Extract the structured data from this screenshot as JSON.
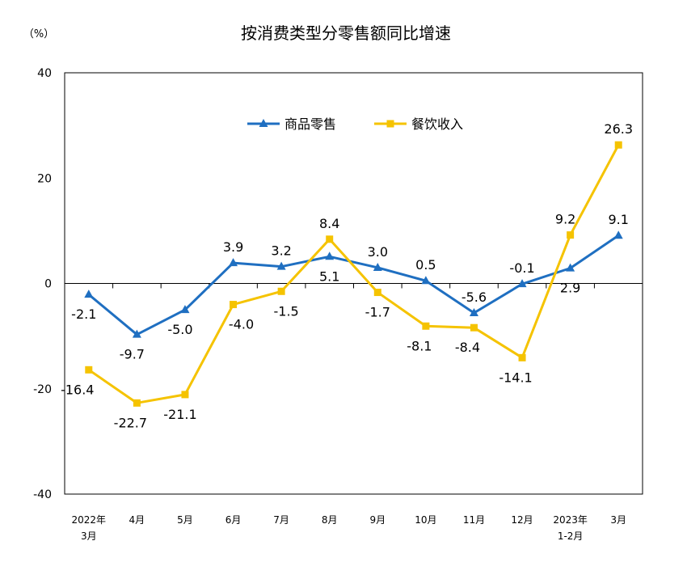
{
  "chart_data": {
    "type": "line",
    "title": "按消费类型分零售额同比增速",
    "y_unit_label": "（%）",
    "ylim": [
      -40,
      40
    ],
    "y_ticks": [
      "40",
      "20",
      "0",
      "-20",
      "-40"
    ],
    "y_tick_values": [
      40,
      20,
      0,
      -20,
      -40
    ],
    "categories": [
      [
        "2022年",
        "3月"
      ],
      [
        "4月"
      ],
      [
        "5月"
      ],
      [
        "6月"
      ],
      [
        "7月"
      ],
      [
        "8月"
      ],
      [
        "9月"
      ],
      [
        "10月"
      ],
      [
        "11月"
      ],
      [
        "12月"
      ],
      [
        "2023年",
        "1-2月"
      ],
      [
        "3月"
      ]
    ],
    "series": [
      {
        "name": "商品零售",
        "color": "#1f6fc1",
        "marker": "triangle",
        "values": [
          -2.1,
          -9.7,
          -5.0,
          3.9,
          3.2,
          5.1,
          3.0,
          0.5,
          -5.6,
          -0.1,
          2.9,
          9.1
        ],
        "labels": [
          "-2.1",
          "-9.7",
          "-5.0",
          "3.9",
          "3.2",
          "5.1",
          "3.0",
          "0.5",
          "-5.6",
          "-0.1",
          "2.9",
          "9.1"
        ]
      },
      {
        "name": "餐饮收入",
        "color": "#f5c300",
        "marker": "square",
        "values": [
          -16.4,
          -22.7,
          -21.1,
          -4.0,
          -1.5,
          8.4,
          -1.7,
          -8.1,
          -8.4,
          -14.1,
          9.2,
          26.3
        ],
        "labels": [
          "-16.4",
          "-22.7",
          "-21.1",
          "-4.0",
          "-1.5",
          "8.4",
          "-1.7",
          "-8.1",
          "-8.4",
          "-14.1",
          "9.2",
          "26.3"
        ]
      }
    ],
    "legend_position": "top-center"
  }
}
